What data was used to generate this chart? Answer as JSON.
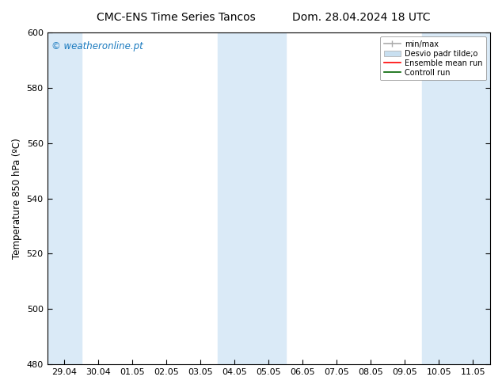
{
  "title_left": "CMC-ENS Time Series Tancos",
  "title_right": "Dom. 28.04.2024 18 UTC",
  "ylabel": "Temperature 850 hPa (ºC)",
  "ylim": [
    480,
    600
  ],
  "yticks": [
    480,
    500,
    520,
    540,
    560,
    580,
    600
  ],
  "xtick_labels": [
    "29.04",
    "30.04",
    "01.05",
    "02.05",
    "03.05",
    "04.05",
    "05.05",
    "06.05",
    "07.05",
    "08.05",
    "09.05",
    "10.05",
    "11.05"
  ],
  "xtick_positions": [
    0,
    1,
    2,
    3,
    4,
    5,
    6,
    7,
    8,
    9,
    10,
    11,
    12
  ],
  "xlim": [
    -0.5,
    12.5
  ],
  "watermark": "© weatheronline.pt",
  "watermark_color": "#1a7abf",
  "shaded_regions": [
    {
      "xmin": -0.5,
      "xmax": 0.5,
      "color": "#daeaf7"
    },
    {
      "xmin": 4.5,
      "xmax": 6.5,
      "color": "#daeaf7"
    },
    {
      "xmin": 10.5,
      "xmax": 12.5,
      "color": "#daeaf7"
    }
  ],
  "legend_entries": [
    {
      "label": "min/max",
      "color": "#aaaaaa",
      "lw": 1.2,
      "style": "errorbar"
    },
    {
      "label": "Desvio padr tilde;o",
      "color": "#c8dff0",
      "lw": 8,
      "style": "patch"
    },
    {
      "label": "Ensemble mean run",
      "color": "red",
      "lw": 1.2,
      "style": "line"
    },
    {
      "label": "Controll run",
      "color": "darkgreen",
      "lw": 1.2,
      "style": "line"
    }
  ],
  "bg_color": "#ffffff",
  "plot_bg_color": "#ffffff",
  "title_fontsize": 10,
  "tick_fontsize": 8,
  "ylabel_fontsize": 8.5
}
